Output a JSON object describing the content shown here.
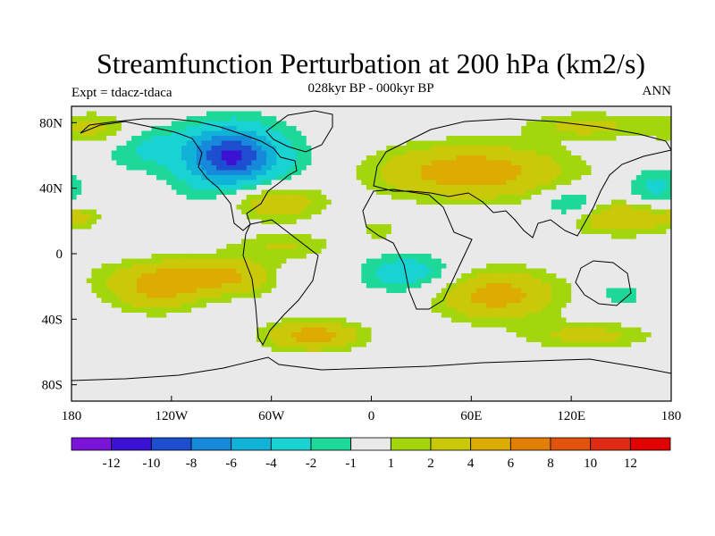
{
  "chart_data": {
    "type": "heatmap",
    "title": "Streamfunction Perturbation at 200 hPa (km2/s)",
    "subtitle_center": "028kyr BP - 000kyr BP",
    "subtitle_left": "Expt = tdacz-tdaca",
    "subtitle_right": "ANN",
    "x_ticks": [
      {
        "value": -180,
        "label": "180"
      },
      {
        "value": -120,
        "label": "120W"
      },
      {
        "value": -60,
        "label": "60W"
      },
      {
        "value": 0,
        "label": "0"
      },
      {
        "value": 60,
        "label": "60E"
      },
      {
        "value": 120,
        "label": "120E"
      },
      {
        "value": 180,
        "label": "180"
      }
    ],
    "y_ticks": [
      {
        "value": 80,
        "label": "80N"
      },
      {
        "value": 40,
        "label": "40N"
      },
      {
        "value": 0,
        "label": "0"
      },
      {
        "value": -40,
        "label": "40S"
      },
      {
        "value": -80,
        "label": "80S"
      }
    ],
    "xlim": [
      -180,
      180
    ],
    "ylim": [
      -90,
      90
    ],
    "levels": [
      "-12",
      "-10",
      "-8",
      "-6",
      "-4",
      "-2",
      "-1",
      "1",
      "2",
      "4",
      "6",
      "8",
      "10",
      "12"
    ],
    "colors": [
      "#7a14d8",
      "#3b12d4",
      "#1c4ecf",
      "#1689da",
      "#11b2d8",
      "#19d3d3",
      "#1ed89a",
      "#e9e9e9",
      "#a3d60c",
      "#c9c90a",
      "#dcac02",
      "#e27f02",
      "#e1530f",
      "#e02b14",
      "#e00202"
    ],
    "anomalies": [
      {
        "lon": -85,
        "lat": 60,
        "value": -8.0,
        "rlon": 24,
        "rlat": 16
      },
      {
        "lon": -75,
        "lat": 50,
        "value": -3.0,
        "rlon": 40,
        "rlat": 30
      },
      {
        "lon": -135,
        "lat": 65,
        "value": -2.2,
        "rlon": 28,
        "rlat": 14
      },
      {
        "lon": -165,
        "lat": 76,
        "value": 2.6,
        "rlon": 24,
        "rlat": 10
      },
      {
        "lon": -60,
        "lat": 32,
        "value": 5.0,
        "rlon": 30,
        "rlat": 13
      },
      {
        "lon": 60,
        "lat": 50,
        "value": 5.5,
        "rlon": 55,
        "rlat": 16
      },
      {
        "lon": 130,
        "lat": 78,
        "value": 2.6,
        "rlon": 35,
        "rlat": 8
      },
      {
        "lon": 120,
        "lat": 30,
        "value": -3.0,
        "rlon": 18,
        "rlat": 10
      },
      {
        "lon": 170,
        "lat": 40,
        "value": -2.5,
        "rlon": 18,
        "rlat": 12
      },
      {
        "lon": 150,
        "lat": 22,
        "value": 4.0,
        "rlon": 32,
        "rlat": 10
      },
      {
        "lon": -175,
        "lat": 22,
        "value": 2.2,
        "rlon": 10,
        "rlat": 5
      },
      {
        "lon": -100,
        "lat": -14,
        "value": 5.0,
        "rlon": 52,
        "rlat": 11
      },
      {
        "lon": -130,
        "lat": -25,
        "value": 3.0,
        "rlon": 28,
        "rlat": 12
      },
      {
        "lon": -48,
        "lat": -15,
        "value": -2.0,
        "rlon": 16,
        "rlat": 9
      },
      {
        "lon": 22,
        "lat": -12,
        "value": -3.2,
        "rlon": 30,
        "rlat": 12
      },
      {
        "lon": 75,
        "lat": -25,
        "value": 5.0,
        "rlon": 36,
        "rlat": 15
      },
      {
        "lon": -35,
        "lat": -50,
        "value": 5.0,
        "rlon": 28,
        "rlat": 9
      },
      {
        "lon": 130,
        "lat": -50,
        "value": 2.6,
        "rlon": 38,
        "rlat": 8
      },
      {
        "lon": 150,
        "lat": -25,
        "value": -2.0,
        "rlon": 12,
        "rlat": 7
      },
      {
        "lon": -55,
        "lat": 5,
        "value": 2.2,
        "rlon": 34,
        "rlat": 8
      },
      {
        "lon": 5,
        "lat": 14,
        "value": 2.0,
        "rlon": 10,
        "rlat": 5
      }
    ]
  }
}
